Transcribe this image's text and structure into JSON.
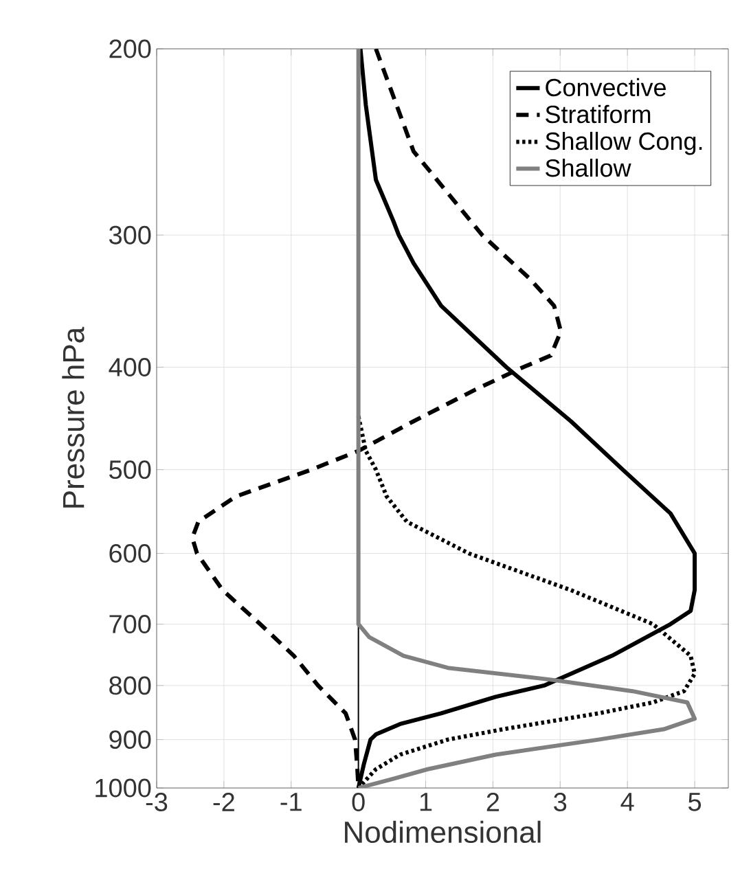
{
  "chart_data": {
    "type": "line",
    "xlabel": "Nodimensional",
    "ylabel": "Pressure hPa",
    "xlim": [
      -3,
      5.5
    ],
    "xticks": [
      -3,
      -2,
      -1,
      0,
      1,
      2,
      3,
      4,
      5
    ],
    "ylim": [
      1000,
      200
    ],
    "yticks": [
      200,
      300,
      400,
      500,
      600,
      700,
      800,
      900,
      1000
    ],
    "log": "y",
    "grid": true,
    "legend": "top right",
    "ref_lines": [
      {
        "axis": "x",
        "value": 0,
        "color": "#000000"
      }
    ],
    "series": [
      {
        "name": "Convective",
        "color": "#000000",
        "line_style": "solid",
        "x": [
          0.03,
          0.11,
          0.26,
          0.52,
          0.6,
          0.82,
          1.23,
          2.2,
          3.16,
          3.93,
          4.64,
          5.0,
          5.0,
          4.94,
          4.64,
          3.77,
          2.76,
          2.04,
          1.23,
          0.62,
          0.26,
          0.18,
          0.08,
          0
        ],
        "values": [
          200,
          226,
          266,
          291,
          300,
          319,
          350,
          400,
          450,
          500,
          550,
          600,
          650,
          680,
          700,
          750,
          800,
          820,
          850,
          870,
          890,
          900,
          950,
          1000
        ]
      },
      {
        "name": "Stratiform",
        "color": "#000000",
        "line_style": "dashed",
        "x": [
          0.26,
          0.82,
          1.84,
          2.55,
          2.91,
          3.01,
          2.86,
          2.45,
          1.74,
          0.82,
          0,
          -0.7,
          -1.82,
          -2.38,
          -2.47,
          -2.4,
          -2.02,
          -1.46,
          -0.96,
          -0.6,
          -0.19,
          -0.05,
          -0.02,
          0
        ],
        "values": [
          200,
          250,
          300,
          330,
          350,
          370,
          390,
          400,
          420,
          450,
          480,
          500,
          530,
          560,
          580,
          600,
          650,
          700,
          750,
          800,
          850,
          900,
          950,
          1000
        ]
      },
      {
        "name": "Shallow Cong.",
        "color": "#000000",
        "line_style": "dotted",
        "x": [
          0,
          0.11,
          0.26,
          0.42,
          0.72,
          1.64,
          3.16,
          4.38,
          4.94,
          5.0,
          4.84,
          4.38,
          3.57,
          2.15,
          1.33,
          0.62,
          0.26,
          0
        ],
        "values": [
          445,
          480,
          500,
          530,
          560,
          600,
          650,
          700,
          750,
          780,
          810,
          830,
          850,
          880,
          900,
          930,
          960,
          1000
        ]
      },
      {
        "name": "Shallow",
        "color": "#808080",
        "line_style": "solid",
        "x": [
          0,
          0,
          0.16,
          0.67,
          1.33,
          2.86,
          4.08,
          4.89,
          5.0,
          4.54,
          3.57,
          2.04,
          1.03,
          0.52,
          0
        ],
        "values": [
          200,
          700,
          720,
          750,
          770,
          790,
          810,
          830,
          860,
          880,
          900,
          930,
          960,
          980,
          1000
        ]
      }
    ]
  }
}
